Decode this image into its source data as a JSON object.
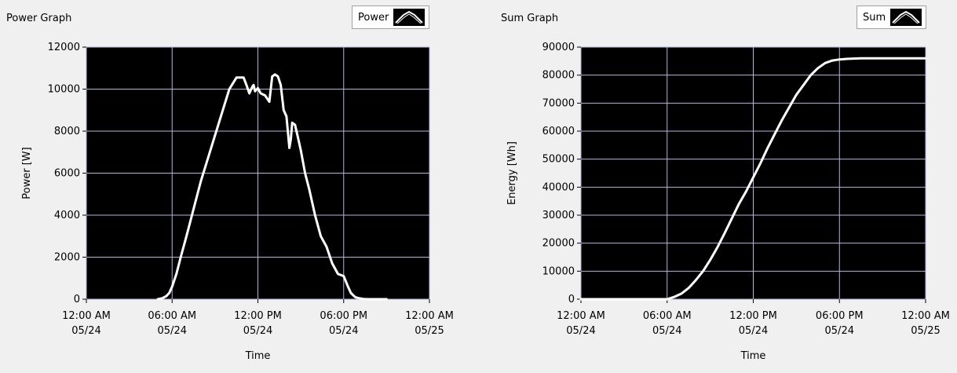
{
  "charts": [
    {
      "id": "power",
      "title": "Power Graph",
      "legend_label": "Power",
      "chart_data": {
        "type": "line",
        "xlabel": "Time",
        "ylabel": "Power [W]",
        "x_ticks": [
          "12:00 AM\n05/24",
          "06:00 AM\n05/24",
          "12:00 PM\n05/24",
          "06:00 PM\n05/24",
          "12:00 AM\n05/25"
        ],
        "xlim": [
          0,
          24
        ],
        "ylim": [
          0,
          12000
        ],
        "y_ticks": [
          0,
          2000,
          4000,
          6000,
          8000,
          10000,
          12000
        ],
        "grid": true,
        "background": "#000000",
        "line_color": "#ffffff",
        "x": [
          5.0,
          5.3,
          5.6,
          5.8,
          6.0,
          6.3,
          6.6,
          7.0,
          7.5,
          8.0,
          8.5,
          9.0,
          9.5,
          10.0,
          10.5,
          11.0,
          11.2,
          11.4,
          11.6,
          11.7,
          11.8,
          12.0,
          12.2,
          12.5,
          12.8,
          13.0,
          13.2,
          13.4,
          13.6,
          13.8,
          14.0,
          14.2,
          14.3,
          14.4,
          14.6,
          14.8,
          15.0,
          15.3,
          15.6,
          16.0,
          16.4,
          16.8,
          17.2,
          17.6,
          18.0,
          18.3,
          18.5,
          18.8,
          19.1,
          19.4,
          19.7,
          20.0,
          20.3,
          20.6,
          21.0
        ],
        "y": [
          0,
          40,
          150,
          300,
          600,
          1200,
          2000,
          3000,
          4300,
          5600,
          6700,
          7800,
          8900,
          10000,
          10550,
          10550,
          10200,
          9800,
          10100,
          10200,
          9900,
          10050,
          9800,
          9700,
          9400,
          10600,
          10700,
          10600,
          10200,
          9000,
          8700,
          7200,
          7600,
          8400,
          8300,
          7700,
          7100,
          6000,
          5200,
          4000,
          3000,
          2500,
          1700,
          1200,
          1100,
          600,
          300,
          100,
          40,
          10,
          0,
          0,
          0,
          0,
          0
        ]
      }
    },
    {
      "id": "sum",
      "title": "Sum Graph",
      "legend_label": "Sum",
      "chart_data": {
        "type": "line",
        "xlabel": "Time",
        "ylabel": "Energy [Wh]",
        "x_ticks": [
          "12:00 AM\n05/24",
          "06:00 AM\n05/24",
          "12:00 PM\n05/24",
          "06:00 PM\n05/24",
          "12:00 AM\n05/25"
        ],
        "xlim": [
          0,
          24
        ],
        "ylim": [
          0,
          90000
        ],
        "y_ticks": [
          0,
          10000,
          20000,
          30000,
          40000,
          50000,
          60000,
          70000,
          80000,
          90000
        ],
        "grid": true,
        "background": "#000000",
        "line_color": "#ffffff",
        "x": [
          0,
          6.0,
          6.5,
          7.0,
          7.5,
          8.0,
          8.5,
          9.0,
          9.5,
          10.0,
          10.5,
          11.0,
          11.5,
          12.0,
          12.5,
          13.0,
          13.5,
          14.0,
          14.5,
          15.0,
          15.5,
          16.0,
          16.5,
          17.0,
          17.5,
          18.0,
          18.5,
          19.0,
          19.5,
          20.0,
          21.0,
          22.0,
          23.0,
          24.0
        ],
        "y": [
          0,
          0,
          800,
          2000,
          4000,
          6800,
          10000,
          14000,
          18500,
          23500,
          28800,
          34000,
          38500,
          43500,
          48500,
          54000,
          59000,
          64000,
          68500,
          73000,
          76500,
          80000,
          82500,
          84300,
          85200,
          85600,
          85800,
          85900,
          86000,
          86000,
          86000,
          86000,
          86000,
          86000
        ]
      }
    }
  ]
}
